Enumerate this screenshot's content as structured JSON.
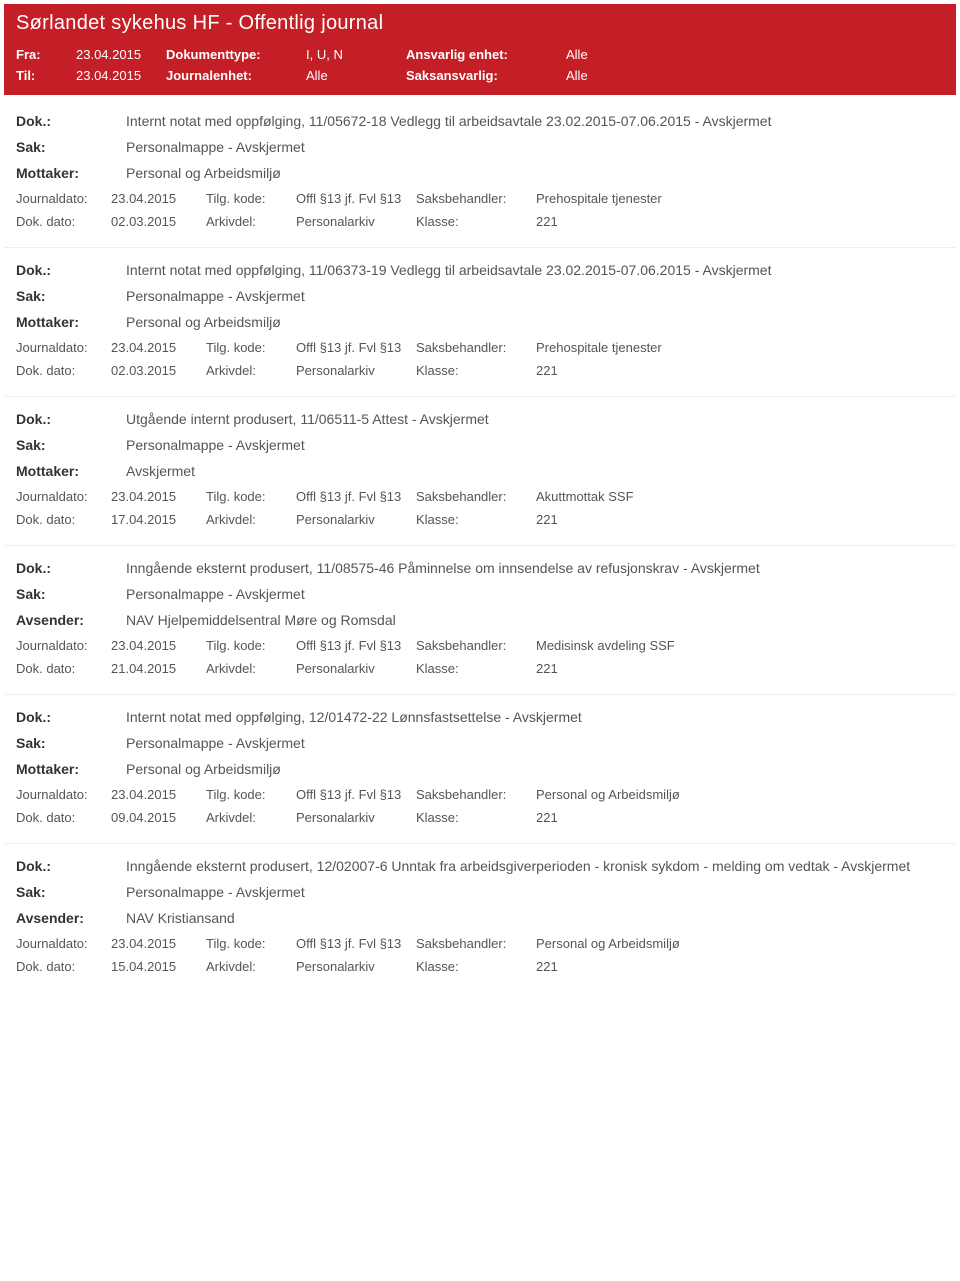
{
  "header": {
    "title": "Sørlandet sykehus HF - Offentlig journal",
    "fra_label": "Fra:",
    "fra_value": "23.04.2015",
    "til_label": "Til:",
    "til_value": "23.04.2015",
    "dokumenttype_label": "Dokumenttype:",
    "dokumenttype_value": "I, U, N",
    "journalenhet_label": "Journalenhet:",
    "journalenhet_value": "Alle",
    "ansvarlig_label": "Ansvarlig enhet:",
    "ansvarlig_value": "Alle",
    "saksansvarlig_label": "Saksansvarlig:",
    "saksansvarlig_value": "Alle"
  },
  "labels": {
    "dok": "Dok.:",
    "sak": "Sak:",
    "mottaker": "Mottaker:",
    "avsender": "Avsender:",
    "journaldato": "Journaldato:",
    "dokdato": "Dok. dato:",
    "tilgkode": "Tilg. kode:",
    "arkivdel": "Arkivdel:",
    "saksbehandler": "Saksbehandler:",
    "klasse": "Klasse:"
  },
  "entries": [
    {
      "dok": "Internt notat med oppfølging, 11/05672-18 Vedlegg til arbeidsavtale 23.02.2015-07.06.2015 - Avskjermet",
      "sak": "Personalmappe - Avskjermet",
      "party_label_key": "mottaker",
      "party": "Personal og Arbeidsmiljø",
      "journaldato": "23.04.2015",
      "dokdato": "02.03.2015",
      "tilgkode": "Offl §13 jf. Fvl §13",
      "arkivdel": "Personalarkiv",
      "saksbehandler": "Prehospitale tjenester",
      "klasse": "221"
    },
    {
      "dok": "Internt notat med oppfølging, 11/06373-19 Vedlegg til arbeidsavtale 23.02.2015-07.06.2015 - Avskjermet",
      "sak": "Personalmappe - Avskjermet",
      "party_label_key": "mottaker",
      "party": "Personal og Arbeidsmiljø",
      "journaldato": "23.04.2015",
      "dokdato": "02.03.2015",
      "tilgkode": "Offl §13 jf. Fvl §13",
      "arkivdel": "Personalarkiv",
      "saksbehandler": "Prehospitale tjenester",
      "klasse": "221"
    },
    {
      "dok": "Utgående internt produsert, 11/06511-5 Attest - Avskjermet",
      "sak": "Personalmappe - Avskjermet",
      "party_label_key": "mottaker",
      "party": "Avskjermet",
      "journaldato": "23.04.2015",
      "dokdato": "17.04.2015",
      "tilgkode": "Offl §13 jf. Fvl §13",
      "arkivdel": "Personalarkiv",
      "saksbehandler": "Akuttmottak SSF",
      "klasse": "221"
    },
    {
      "dok": "Inngående eksternt produsert, 11/08575-46 Påminnelse om innsendelse  av refusjonskrav - Avskjermet",
      "sak": "Personalmappe - Avskjermet",
      "party_label_key": "avsender",
      "party": "NAV Hjelpemiddelsentral Møre og Romsdal",
      "journaldato": "23.04.2015",
      "dokdato": "21.04.2015",
      "tilgkode": "Offl §13 jf. Fvl §13",
      "arkivdel": "Personalarkiv",
      "saksbehandler": "Medisinsk avdeling SSF",
      "klasse": "221"
    },
    {
      "dok": "Internt notat med oppfølging, 12/01472-22 Lønnsfastsettelse - Avskjermet",
      "sak": "Personalmappe - Avskjermet",
      "party_label_key": "mottaker",
      "party": "Personal og Arbeidsmiljø",
      "journaldato": "23.04.2015",
      "dokdato": "09.04.2015",
      "tilgkode": "Offl §13 jf. Fvl §13",
      "arkivdel": "Personalarkiv",
      "saksbehandler": "Personal og Arbeidsmiljø",
      "klasse": "221"
    },
    {
      "dok": "Inngående eksternt produsert, 12/02007-6 Unntak fra arbeidsgiverperioden - kronisk sykdom - melding om vedtak - Avskjermet",
      "sak": "Personalmappe - Avskjermet",
      "party_label_key": "avsender",
      "party": "NAV Kristiansand",
      "journaldato": "23.04.2015",
      "dokdato": "15.04.2015",
      "tilgkode": "Offl §13 jf. Fvl §13",
      "arkivdel": "Personalarkiv",
      "saksbehandler": "Personal og Arbeidsmiljø",
      "klasse": "221"
    }
  ]
}
